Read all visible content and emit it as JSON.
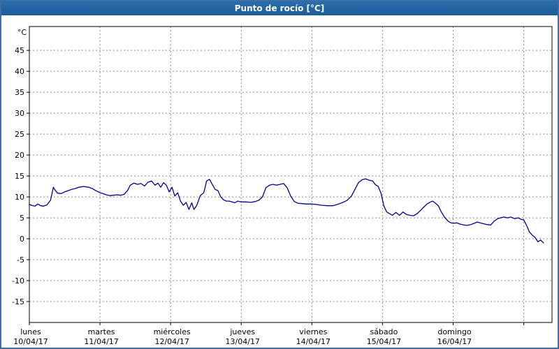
{
  "window": {
    "title": "Punto de rocío [°C]"
  },
  "colors": {
    "frame_border": "#3a6ea5",
    "title_bg": "#1d5c99",
    "title_text": "#ffffff",
    "line": "#00008b",
    "grid": "#8c8c8c",
    "plot_border": "#000000",
    "text": "#000000",
    "background": "#ffffff"
  },
  "chart_data": {
    "type": "line",
    "title": "Punto de rocío [°C]",
    "xlabel": "",
    "ylabel": "°C",
    "ylim": [
      -20,
      50.7
    ],
    "yticks": [
      -15,
      -10,
      -5,
      0,
      5,
      10,
      15,
      20,
      25,
      30,
      35,
      40,
      45
    ],
    "xlim_days": [
      0,
      7.4
    ],
    "grid": true,
    "legend_position": "none",
    "x_day_labels": [
      {
        "day": 0,
        "name": "lunes",
        "date": "10/04/17"
      },
      {
        "day": 1,
        "name": "martes",
        "date": "11/04/17"
      },
      {
        "day": 2,
        "name": "miércoles",
        "date": "12/04/17"
      },
      {
        "day": 3,
        "name": "jueves",
        "date": "13/04/17"
      },
      {
        "day": 4,
        "name": "viernes",
        "date": "14/04/17"
      },
      {
        "day": 5,
        "name": "sábado",
        "date": "15/04/17"
      },
      {
        "day": 6,
        "name": "domingo",
        "date": "16/04/17"
      }
    ],
    "series": [
      {
        "name": "Punto de rocío",
        "color": "#00008b",
        "points": [
          [
            0.0,
            8.2
          ],
          [
            0.05,
            7.9
          ],
          [
            0.08,
            7.8
          ],
          [
            0.12,
            8.3
          ],
          [
            0.16,
            7.9
          ],
          [
            0.2,
            7.8
          ],
          [
            0.25,
            8.1
          ],
          [
            0.3,
            9.2
          ],
          [
            0.34,
            12.3
          ],
          [
            0.37,
            11.5
          ],
          [
            0.4,
            10.9
          ],
          [
            0.45,
            10.8
          ],
          [
            0.5,
            11.2
          ],
          [
            0.55,
            11.5
          ],
          [
            0.6,
            11.8
          ],
          [
            0.65,
            12.0
          ],
          [
            0.7,
            12.3
          ],
          [
            0.77,
            12.5
          ],
          [
            0.84,
            12.3
          ],
          [
            0.89,
            12.0
          ],
          [
            0.94,
            11.5
          ],
          [
            1.0,
            11.0
          ],
          [
            1.04,
            10.8
          ],
          [
            1.09,
            10.5
          ],
          [
            1.14,
            10.3
          ],
          [
            1.19,
            10.4
          ],
          [
            1.24,
            10.5
          ],
          [
            1.29,
            10.4
          ],
          [
            1.34,
            10.6
          ],
          [
            1.39,
            11.5
          ],
          [
            1.43,
            12.8
          ],
          [
            1.48,
            13.3
          ],
          [
            1.53,
            13.0
          ],
          [
            1.58,
            13.2
          ],
          [
            1.63,
            12.6
          ],
          [
            1.68,
            13.5
          ],
          [
            1.73,
            13.8
          ],
          [
            1.78,
            12.8
          ],
          [
            1.82,
            13.3
          ],
          [
            1.86,
            12.3
          ],
          [
            1.9,
            13.4
          ],
          [
            1.94,
            12.8
          ],
          [
            1.98,
            11.2
          ],
          [
            2.02,
            12.3
          ],
          [
            2.06,
            10.2
          ],
          [
            2.1,
            11.0
          ],
          [
            2.14,
            9.0
          ],
          [
            2.18,
            8.0
          ],
          [
            2.22,
            8.7
          ],
          [
            2.26,
            7.0
          ],
          [
            2.3,
            8.6
          ],
          [
            2.33,
            7.0
          ],
          [
            2.37,
            8.0
          ],
          [
            2.42,
            10.3
          ],
          [
            2.47,
            11.0
          ],
          [
            2.51,
            13.8
          ],
          [
            2.55,
            14.2
          ],
          [
            2.59,
            13.0
          ],
          [
            2.63,
            11.8
          ],
          [
            2.67,
            11.5
          ],
          [
            2.71,
            10.0
          ],
          [
            2.75,
            9.3
          ],
          [
            2.79,
            9.0
          ],
          [
            2.83,
            9.0
          ],
          [
            2.87,
            8.8
          ],
          [
            2.91,
            8.6
          ],
          [
            2.95,
            9.0
          ],
          [
            3.0,
            8.8
          ],
          [
            3.07,
            8.8
          ],
          [
            3.14,
            8.7
          ],
          [
            3.2,
            8.9
          ],
          [
            3.25,
            9.2
          ],
          [
            3.3,
            10.0
          ],
          [
            3.35,
            12.2
          ],
          [
            3.4,
            12.8
          ],
          [
            3.45,
            13.0
          ],
          [
            3.5,
            12.8
          ],
          [
            3.55,
            13.0
          ],
          [
            3.6,
            13.2
          ],
          [
            3.65,
            12.2
          ],
          [
            3.7,
            10.2
          ],
          [
            3.75,
            8.9
          ],
          [
            3.8,
            8.5
          ],
          [
            3.86,
            8.4
          ],
          [
            3.92,
            8.3
          ],
          [
            4.0,
            8.3
          ],
          [
            4.06,
            8.2
          ],
          [
            4.14,
            8.0
          ],
          [
            4.22,
            7.9
          ],
          [
            4.3,
            7.9
          ],
          [
            4.38,
            8.3
          ],
          [
            4.44,
            8.7
          ],
          [
            4.5,
            9.2
          ],
          [
            4.56,
            10.2
          ],
          [
            4.61,
            11.8
          ],
          [
            4.66,
            13.4
          ],
          [
            4.71,
            14.1
          ],
          [
            4.76,
            14.3
          ],
          [
            4.81,
            14.0
          ],
          [
            4.86,
            13.8
          ],
          [
            4.9,
            12.9
          ],
          [
            4.94,
            12.5
          ],
          [
            4.98,
            10.8
          ],
          [
            5.02,
            7.8
          ],
          [
            5.06,
            6.4
          ],
          [
            5.1,
            6.0
          ],
          [
            5.14,
            5.6
          ],
          [
            5.19,
            6.3
          ],
          [
            5.24,
            5.6
          ],
          [
            5.29,
            6.4
          ],
          [
            5.34,
            5.8
          ],
          [
            5.39,
            5.6
          ],
          [
            5.44,
            5.5
          ],
          [
            5.49,
            6.0
          ],
          [
            5.54,
            6.8
          ],
          [
            5.58,
            7.5
          ],
          [
            5.63,
            8.3
          ],
          [
            5.68,
            8.8
          ],
          [
            5.71,
            9.0
          ],
          [
            5.75,
            8.5
          ],
          [
            5.79,
            7.9
          ],
          [
            5.83,
            6.5
          ],
          [
            5.88,
            5.1
          ],
          [
            5.93,
            4.2
          ],
          [
            5.97,
            3.8
          ],
          [
            6.0,
            3.7
          ],
          [
            6.05,
            3.8
          ],
          [
            6.1,
            3.5
          ],
          [
            6.15,
            3.3
          ],
          [
            6.2,
            3.2
          ],
          [
            6.25,
            3.4
          ],
          [
            6.3,
            3.7
          ],
          [
            6.34,
            4.0
          ],
          [
            6.38,
            3.8
          ],
          [
            6.43,
            3.6
          ],
          [
            6.48,
            3.4
          ],
          [
            6.53,
            3.3
          ],
          [
            6.58,
            4.2
          ],
          [
            6.63,
            4.8
          ],
          [
            6.67,
            5.0
          ],
          [
            6.72,
            5.2
          ],
          [
            6.77,
            5.0
          ],
          [
            6.82,
            5.2
          ],
          [
            6.87,
            4.8
          ],
          [
            6.92,
            5.0
          ],
          [
            6.97,
            4.6
          ],
          [
            7.0,
            4.5
          ],
          [
            7.04,
            3.2
          ],
          [
            7.08,
            1.6
          ],
          [
            7.12,
            0.9
          ],
          [
            7.16,
            0.3
          ],
          [
            7.2,
            -0.7
          ],
          [
            7.24,
            -0.3
          ],
          [
            7.28,
            -1.0
          ]
        ]
      }
    ]
  }
}
